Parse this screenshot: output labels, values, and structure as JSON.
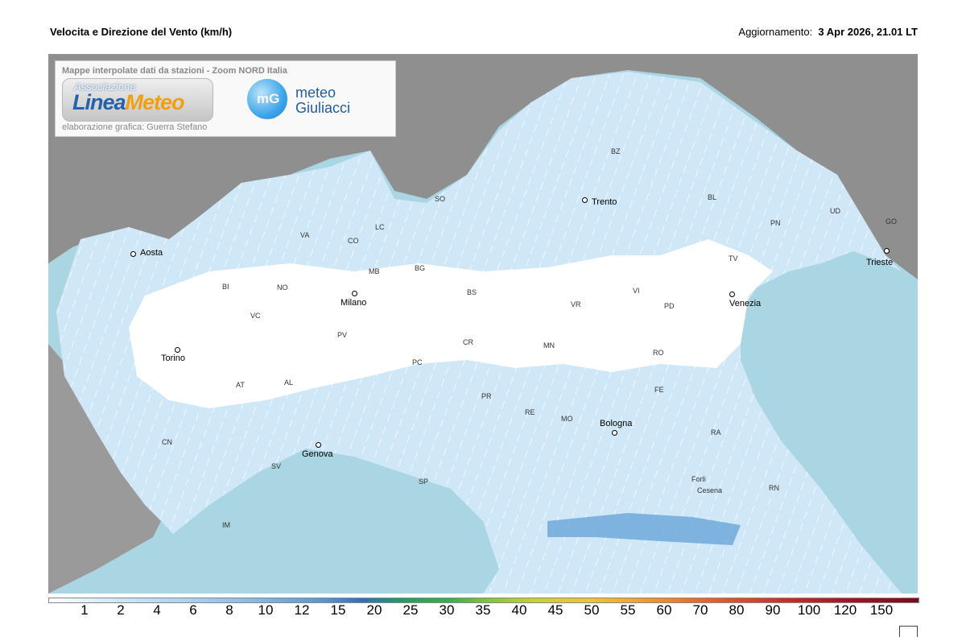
{
  "header": {
    "title": "Velocita e Direzione del Vento  (km/h)",
    "update_label": "Aggiornamento:",
    "update_value": "3 Apr 2026, 21.01 LT"
  },
  "credit": {
    "top_text": "Mappe interpolate dati da stazioni - Zoom NORD Italia",
    "logo1_small": "Associazione",
    "logo1_main_a": "Linea",
    "logo1_main_b": "Meteo",
    "logo2_mark": "mG",
    "logo2_line1": "meteo",
    "logo2_line2": "Giuliacci",
    "bottom_text": "elaborazione grafica: Guerra Stefano"
  },
  "cities": [
    {
      "name": "Aosta"
    },
    {
      "name": "Torino"
    },
    {
      "name": "Milano"
    },
    {
      "name": "Genova"
    },
    {
      "name": "Trento"
    },
    {
      "name": "Venezia"
    },
    {
      "name": "Trieste"
    },
    {
      "name": "Bologna"
    }
  ],
  "provinces": [
    "BI",
    "NO",
    "VC",
    "VA",
    "CO",
    "LC",
    "MB",
    "SO",
    "BG",
    "BS",
    "PV",
    "AT",
    "AL",
    "CN",
    "SV",
    "IM",
    "PC",
    "CR",
    "MN",
    "VR",
    "VI",
    "PD",
    "TV",
    "BL",
    "BZ",
    "PN",
    "UD",
    "GO",
    "RO",
    "FE",
    "RA",
    "PR",
    "RE",
    "MO",
    "SP",
    "Forlì",
    "Cesena",
    "RN"
  ],
  "scale": {
    "ticks": [
      "1",
      "2",
      "4",
      "6",
      "8",
      "10",
      "12",
      "15",
      "20",
      "25",
      "30",
      "35",
      "40",
      "45",
      "50",
      "55",
      "60",
      "70",
      "80",
      "90",
      "100",
      "120",
      "150"
    ]
  }
}
